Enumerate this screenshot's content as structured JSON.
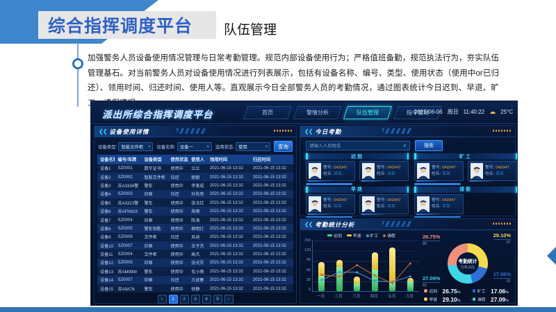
{
  "slide": {
    "title": "综合指挥调度平台",
    "subtitle": "队伍管理",
    "body_text": "加强警务人员设备使用情况管理与日常考勤管理。规范内部设备使用行为；严格值班备勤，规范执法行为，夯实队伍管理基石。对当前警务人员对设备使用情况进行列表展示，包括有设备名称、编号、类型、使用状态（使用中or已归还）、领用时间、归还时间、使用人等。直观展示今日全部警务人员的考勤情况，通过图表统计今日迟到、早退、旷工、请假情况。"
  },
  "dashboard": {
    "logo": "派出所综合指挥调度平台",
    "nav": [
      {
        "label": "首页",
        "active": false
      },
      {
        "label": "警情分析",
        "active": false
      },
      {
        "label": "队伍管理",
        "active": true
      },
      {
        "label": "指令管理",
        "active": false
      }
    ],
    "datetime": {
      "date": "2021-06-06",
      "weekday": "周日",
      "time": "11:40:22",
      "weather_icon_glyph": "☁",
      "weather": "25°C"
    },
    "device_panel": {
      "title": "设备使用详情",
      "filters": [
        {
          "label": "设备类型:",
          "value": "智能文件柜"
        },
        {
          "label": "设备名称:",
          "value": "设备一"
        },
        {
          "label": "选用状态:",
          "value": "使用"
        }
      ],
      "query_button": "查询",
      "table": {
        "headers": [
          "设备名称",
          "编号/车牌",
          "设备类型",
          "使用状态",
          "使用人",
          "领用时间",
          "归还时间"
        ],
        "rows": [
          [
            "设备1",
            "SZ0001",
            "数字证书",
            "使用中",
            "兰兰",
            "2021-06-15 13:32",
            "2021-06-15 13:32"
          ],
          [
            "设备2",
            "SZ0002",
            "智能文件柜",
            "归还",
            "丽丽",
            "2021-06-15 13:32",
            "2021-06-15 13:32"
          ],
          [
            "设备3",
            "苏A3336警",
            "警车",
            "使用中",
            "李美成",
            "2021-06-15 13:32",
            "2021-06-15 13:32"
          ],
          [
            "设备4",
            "SZ0003",
            "印章",
            "归还",
            "孙先亮",
            "2021-06-15 13:32",
            "2021-06-15 13:32"
          ],
          [
            "设备5",
            "苏A3323警",
            "警车",
            "使用中",
            "张玉红",
            "2021-06-15 13:32",
            "2021-06-15 13:32"
          ],
          [
            "设备6",
            "苏AFN919",
            "警车",
            "使用中",
            "朱雨",
            "2021-06-15 13:32",
            "2021-06-15 13:32"
          ],
          [
            "设备7",
            "SZ0004",
            "印章",
            "使用中",
            "陈涛",
            "2021-06-15 13:32",
            "2021-06-15 13:32"
          ],
          [
            "设备8",
            "SZ0005",
            "警车钥匙",
            "使用中",
            "柳明灯",
            "2021-06-15 13:32",
            "2021-06-15 13:32"
          ],
          [
            "设备9",
            "SZ0006",
            "文件柜",
            "归还",
            "吴迪",
            "2021-06-15 13:32",
            "2021-06-15 13:32"
          ],
          [
            "设备10",
            "SZ0007",
            "印章",
            "使用中",
            "王子杰",
            "2021-06-15 13:32",
            "2021-06-15 13:32"
          ],
          [
            "设备11",
            "SZ0004",
            "文件柜",
            "使用中",
            "高杰",
            "2021-06-15 13:32",
            "2021-06-15 13:32"
          ],
          [
            "设备12",
            "SZ0005",
            "印章",
            "使用中",
            "张光军",
            "2021-06-15 13:32",
            "2021-06-15 13:32"
          ],
          [
            "设备13",
            "苏AM99W",
            "警车",
            "使用中",
            "毛小雨",
            "2021-06-15 13:32",
            "2021-06-15 13:32"
          ],
          [
            "设备14",
            "SZ0007",
            "印章",
            "归还",
            "方武春",
            "2021-06-15 13:32",
            "2021-06-15 13:32"
          ],
          [
            "设备15",
            "苏A9A76",
            "警车",
            "使用中",
            "徐静",
            "2021-06-15 13:32",
            "2021-06-15 13:32"
          ]
        ]
      },
      "pagination": {
        "prev": "‹",
        "pages": [
          "1",
          "2",
          "3",
          "4",
          "5"
        ],
        "next": "›",
        "active": "1"
      }
    },
    "attendance_panel": {
      "title": "今日考勤",
      "search_placeholder": "请输入人员姓名",
      "search_button": "搜索",
      "badge_label": "警号:",
      "name_label": "姓名:",
      "groups": [
        {
          "label": "迟到",
          "cards": [
            {
              "badge": "042047",
              "name": "兰兰"
            },
            {
              "badge": "042047",
              "name": "兰兰"
            }
          ]
        },
        {
          "label": "旷工",
          "cards": [
            {
              "badge": "042047",
              "name": "兰兰"
            },
            {
              "badge": "042047",
              "name": "兰兰"
            }
          ]
        },
        {
          "label": "早退",
          "cards": [
            {
              "badge": "042047",
              "name": "兰兰"
            },
            {
              "badge": "042047",
              "name": "兰兰"
            }
          ]
        },
        {
          "label": "请假",
          "cards": [
            {
              "badge": "042047",
              "name": "兰兰"
            }
          ]
        }
      ]
    },
    "stats_panel": {
      "title": "考勤统计分析"
    }
  },
  "chart_data": [
    {
      "type": "bar",
      "title": "考勤统计分析（月度堆叠柱状图+折线）",
      "categories": [
        "一月",
        "二月",
        "三月",
        "四月",
        "五月",
        "六月"
      ],
      "series": [
        {
          "name": "迟到",
          "render": "bar",
          "color": "#45d877",
          "values": [
            45,
            70,
            22,
            62,
            25,
            28
          ]
        },
        {
          "name": "早退",
          "render": "bar",
          "color": "#e9c63c",
          "values": [
            40,
            22,
            20,
            51,
            102,
            10
          ]
        },
        {
          "name": "旷工",
          "render": "line",
          "color": "#3f9bd8",
          "values": [
            35,
            58,
            57,
            32,
            30,
            45
          ]
        },
        {
          "name": "请假",
          "render": "line",
          "color": "#c9682a",
          "values": [
            50,
            45,
            78,
            48,
            25,
            83
          ]
        }
      ],
      "ylim": [
        0,
        150
      ],
      "yticks": [
        0,
        30,
        60,
        90,
        120,
        150
      ],
      "grid": true,
      "legend_position": "top"
    },
    {
      "type": "pie",
      "center_title": "考勤统计",
      "center_subtitle": "分布占比",
      "slices": [
        {
          "name": "迟到",
          "pct": 26.75,
          "count": 80,
          "color": "#f0907a"
        },
        {
          "name": "早退",
          "pct": 29.1,
          "count": 87,
          "color": "#f5d94e"
        },
        {
          "name": "旷工",
          "pct": 17.06,
          "count": 51,
          "color": "#2e6fd8"
        },
        {
          "name": "请假",
          "pct": 27.09,
          "count": 81,
          "color": "#3fd6e8"
        }
      ]
    }
  ]
}
